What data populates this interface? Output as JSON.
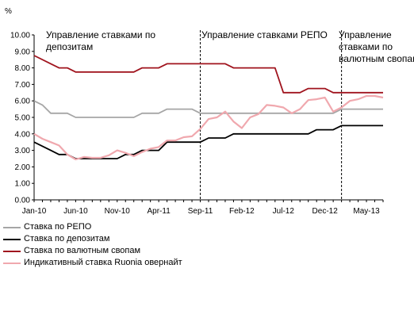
{
  "chart_data": {
    "type": "line",
    "unit_label": "%",
    "yticks": [
      "0.00",
      "1.00",
      "2.00",
      "3.00",
      "4.00",
      "5.00",
      "6.00",
      "7.00",
      "8.00",
      "9.00",
      "10.00"
    ],
    "ylim": [
      0,
      10
    ],
    "xticks": [
      "Jan-10",
      "Jun-10",
      "Nov-10",
      "Apr-11",
      "Sep-11",
      "Feb-12",
      "Jul-12",
      "Dec-12",
      "May-13"
    ],
    "xlim": [
      0,
      42
    ],
    "grid": false,
    "legend_position": "bottom-left",
    "annotations": [
      {
        "lines": [
          "Управление ставками по",
          "депозитам"
        ]
      },
      {
        "lines": [
          "Управление ставками РЕПО"
        ]
      },
      {
        "lines": [
          "Управление",
          "ставками по",
          "валютным свопам"
        ]
      }
    ],
    "vlines_x": [
      20,
      37
    ],
    "series": [
      {
        "name": "Ставка по РЕПО",
        "color": "#a6a6a6",
        "points": [
          [
            0,
            6.0
          ],
          [
            1,
            5.75
          ],
          [
            2,
            5.25
          ],
          [
            4,
            5.25
          ],
          [
            5,
            5.0
          ],
          [
            12,
            5.0
          ],
          [
            13,
            5.25
          ],
          [
            15,
            5.25
          ],
          [
            16,
            5.5
          ],
          [
            19,
            5.5
          ],
          [
            20,
            5.25
          ],
          [
            27,
            5.25
          ],
          [
            36,
            5.25
          ],
          [
            37,
            5.5
          ],
          [
            42,
            5.5
          ]
        ]
      },
      {
        "name": "Ставка по депозитам",
        "color": "#000000",
        "points": [
          [
            0,
            3.5
          ],
          [
            2,
            3.0
          ],
          [
            3,
            2.75
          ],
          [
            4,
            2.75
          ],
          [
            5,
            2.5
          ],
          [
            10,
            2.5
          ],
          [
            11,
            2.75
          ],
          [
            12,
            2.75
          ],
          [
            13,
            3.0
          ],
          [
            15,
            3.0
          ],
          [
            16,
            3.5
          ],
          [
            19,
            3.5
          ],
          [
            20,
            3.5
          ],
          [
            21,
            3.75
          ],
          [
            23,
            3.75
          ],
          [
            24,
            4.0
          ],
          [
            33,
            4.0
          ],
          [
            34,
            4.25
          ],
          [
            36,
            4.25
          ],
          [
            37,
            4.5
          ],
          [
            42,
            4.5
          ]
        ]
      },
      {
        "name": "Ставка по валютным свопам",
        "color": "#a0141e",
        "points": [
          [
            0,
            8.75
          ],
          [
            2,
            8.25
          ],
          [
            3,
            8.0
          ],
          [
            4,
            8.0
          ],
          [
            5,
            7.75
          ],
          [
            12,
            7.75
          ],
          [
            13,
            8.0
          ],
          [
            15,
            8.0
          ],
          [
            16,
            8.25
          ],
          [
            23,
            8.25
          ],
          [
            24,
            8.0
          ],
          [
            28,
            8.0
          ],
          [
            29,
            8.0
          ],
          [
            30,
            6.5
          ],
          [
            32,
            6.5
          ],
          [
            33,
            6.75
          ],
          [
            35,
            6.75
          ],
          [
            36,
            6.5
          ],
          [
            42,
            6.5
          ]
        ]
      },
      {
        "name": "Индикативный ставка Ruonia овернайт",
        "color": "#f0a8ae",
        "points": [
          [
            0,
            4.0
          ],
          [
            1,
            3.7
          ],
          [
            2,
            3.5
          ],
          [
            3,
            3.3
          ],
          [
            4,
            2.75
          ],
          [
            5,
            2.45
          ],
          [
            6,
            2.6
          ],
          [
            7,
            2.55
          ],
          [
            8,
            2.55
          ],
          [
            9,
            2.7
          ],
          [
            10,
            3.0
          ],
          [
            11,
            2.85
          ],
          [
            12,
            2.65
          ],
          [
            13,
            2.9
          ],
          [
            14,
            3.1
          ],
          [
            15,
            3.2
          ],
          [
            16,
            3.6
          ],
          [
            17,
            3.6
          ],
          [
            18,
            3.8
          ],
          [
            19,
            3.85
          ],
          [
            20,
            4.3
          ],
          [
            21,
            4.9
          ],
          [
            22,
            5.0
          ],
          [
            23,
            5.35
          ],
          [
            24,
            4.75
          ],
          [
            25,
            4.35
          ],
          [
            26,
            5.0
          ],
          [
            27,
            5.2
          ],
          [
            28,
            5.75
          ],
          [
            29,
            5.7
          ],
          [
            30,
            5.6
          ],
          [
            31,
            5.25
          ],
          [
            32,
            5.5
          ],
          [
            33,
            6.05
          ],
          [
            34,
            6.1
          ],
          [
            35,
            6.2
          ],
          [
            36,
            5.35
          ],
          [
            37,
            5.6
          ],
          [
            38,
            6.0
          ],
          [
            39,
            6.1
          ],
          [
            40,
            6.3
          ],
          [
            41,
            6.3
          ],
          [
            42,
            6.2
          ]
        ]
      }
    ]
  }
}
